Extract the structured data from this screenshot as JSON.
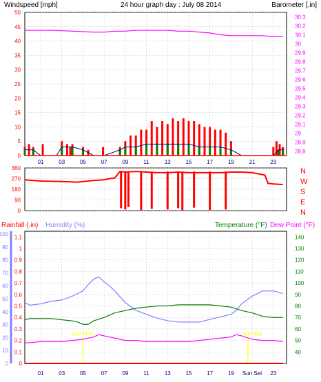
{
  "colors": {
    "wind": "#ff0000",
    "gust_green": "#008000",
    "avg_blue": "#000080",
    "baro": "#ff00ff",
    "dir": "#ff0000",
    "rain": "#ff0000",
    "humidity": "#8080ff",
    "temperature": "#008000",
    "dewpoint": "#ff00ff",
    "sun": "#ffff00",
    "tick_blue": "#000080",
    "grid": "#c0c0c0"
  },
  "chart_data": [
    {
      "type": "line",
      "title": "24 hour graph day : July 08 2014",
      "ylabel_left": "Windspeed [mph]",
      "ylabel_right": "Barometer [.in]",
      "x_range_hours": [
        23.5,
        24.25
      ],
      "x_tick_labels": [
        "01",
        "03",
        "05",
        "07",
        "09",
        "11",
        "13",
        "15",
        "17",
        "19",
        "21",
        "23"
      ],
      "y_left_ticks": [
        "0",
        "5",
        "10",
        "15",
        "20",
        "25",
        "30",
        "35",
        "40",
        "45",
        "50"
      ],
      "y_left_range": [
        0,
        50
      ],
      "y_right_ticks": [
        "28.8",
        "28.9",
        "29",
        "29.1",
        "29.2",
        "29.3",
        "29.4",
        "29.5",
        "29.6",
        "29.7",
        "29.8",
        "29.9",
        "30",
        "30.1",
        "30.2",
        "30.3"
      ],
      "y_right_range": [
        28.75,
        30.35
      ],
      "windspeed_gust": {
        "x": [
          23.5,
          23.9,
          24.3,
          24.8,
          25.2,
          26,
          26.5,
          27,
          27.5,
          27.8,
          28,
          29,
          29.5,
          30,
          30.5,
          30.9,
          31.5,
          32.5,
          33,
          33.5,
          34,
          34.5,
          35,
          35.5,
          36,
          36.5,
          37,
          37.5,
          38,
          38.5,
          39,
          39.5,
          40,
          40.5,
          41,
          41.5,
          42,
          42.5,
          43,
          43.5,
          44,
          44.3,
          45,
          46,
          46.5,
          47,
          47.3,
          47.6,
          47.9
        ],
        "y": [
          3,
          4,
          3,
          0,
          4,
          0,
          0,
          5,
          4,
          3,
          4,
          3,
          2,
          0,
          0,
          3,
          0,
          3,
          5,
          7,
          7,
          9,
          9,
          12,
          10,
          12,
          11,
          13,
          12,
          13,
          12,
          12,
          11,
          10,
          10,
          9,
          9,
          8,
          5,
          0,
          0,
          0,
          0,
          0,
          0,
          3,
          5,
          4,
          3
        ]
      },
      "windspeed_avg": {
        "x": [
          23.5,
          24.3,
          25,
          26.5,
          27,
          28,
          29,
          30,
          31,
          32.5,
          33,
          34,
          35,
          36,
          37,
          38,
          39,
          40,
          41,
          42,
          43,
          44,
          47,
          47.5,
          47.9
        ],
        "y": [
          2,
          2,
          0,
          0,
          3,
          3,
          2,
          0,
          0,
          2,
          3,
          3,
          4,
          4,
          4,
          4,
          4,
          3,
          3,
          3,
          2,
          0,
          0,
          2,
          2
        ]
      },
      "barometer": {
        "x": [
          23.5,
          26,
          28,
          30,
          31,
          32,
          33,
          34,
          35,
          36,
          37,
          38,
          39,
          40,
          41,
          42,
          43,
          44,
          45,
          46,
          47,
          47.9
        ],
        "y": [
          30.15,
          30.15,
          30.14,
          30.13,
          30.13,
          30.14,
          30.14,
          30.15,
          30.15,
          30.15,
          30.15,
          30.14,
          30.14,
          30.13,
          30.12,
          30.1,
          30.09,
          30.09,
          30.09,
          30.09,
          30.08,
          30.08
        ]
      }
    },
    {
      "type": "scatter",
      "ylabel_right": [
        "N",
        "W",
        "S",
        "E",
        "N"
      ],
      "y_left_ticks": [
        "0",
        "90",
        "180",
        "270",
        "360"
      ],
      "y_range": [
        0,
        360
      ],
      "wind_direction": {
        "x": [
          23.5,
          25,
          27,
          28.5,
          30,
          31,
          31.5,
          32,
          32.5,
          33,
          34,
          35,
          36,
          37,
          38,
          39,
          40,
          41,
          42,
          43,
          44,
          45,
          46.2,
          46.5,
          47,
          47.9
        ],
        "y": [
          260,
          250,
          245,
          240,
          255,
          260,
          270,
          275,
          330,
          325,
          330,
          325,
          320,
          320,
          325,
          320,
          320,
          320,
          320,
          325,
          325,
          320,
          300,
          230,
          225,
          220
        ]
      },
      "wind_direction_swings": {
        "x": [
          32.6,
          33,
          33.3,
          34.5,
          35.5,
          37,
          38,
          38.4,
          39.5,
          41,
          42.5
        ],
        "y": [
          20,
          10,
          30,
          5,
          15,
          10,
          20,
          5,
          25,
          5,
          10
        ]
      }
    },
    {
      "type": "line",
      "ylabel_left_1": "Rainfall (.in)",
      "ylabel_left_2": "Humidity (%)",
      "ylabel_right_1": "Temperature (°F)",
      "ylabel_right_2": "Dew Point (°F)",
      "humidity_ticks": [
        "0",
        "10",
        "20",
        "30",
        "40",
        "50",
        "60",
        "70",
        "80",
        "90",
        "100"
      ],
      "rain_ticks": [
        "0",
        "0.1",
        "0.2",
        "0.3",
        "0.4",
        "0.5",
        "0.6",
        "0.7",
        "0.8",
        "0.9",
        "1",
        "1.1"
      ],
      "temp_ticks": [
        "40",
        "50",
        "60",
        "70",
        "80",
        "90",
        "100",
        "110",
        "120",
        "130",
        "140"
      ],
      "x_tick_labels": [
        "01",
        "03",
        "05",
        "07",
        "09",
        "11",
        "13",
        "15",
        "17",
        "19",
        "Sun Set",
        "23"
      ],
      "sunrise_label": "Sun Rise",
      "sunset_label": "Sun Set",
      "rainfall": {
        "x": [
          23.5,
          47.9
        ],
        "y": [
          0,
          0
        ]
      },
      "humidity": {
        "x": [
          23.5,
          24,
          25,
          26,
          27,
          28,
          29,
          29.5,
          30,
          30.5,
          31,
          31.5,
          32,
          33,
          34,
          35,
          36,
          37,
          38,
          39,
          40,
          41,
          42,
          43,
          43.5,
          44,
          45,
          46,
          47,
          47.9
        ],
        "y": [
          47,
          45,
          46,
          48,
          49,
          52,
          56,
          61,
          65,
          67,
          63,
          60,
          56,
          47,
          41,
          38,
          35,
          33,
          32,
          32,
          32,
          34,
          36,
          38,
          41,
          46,
          52,
          56,
          56,
          54
        ]
      },
      "temperature": {
        "x": [
          23.5,
          24,
          25,
          26,
          27,
          28,
          28.5,
          29,
          29.5,
          30,
          31,
          32,
          33,
          34,
          35,
          36,
          37,
          38,
          39,
          40,
          41,
          42,
          43,
          44,
          45,
          46,
          47,
          47.9
        ],
        "y": [
          68,
          69,
          69,
          69,
          68,
          67,
          66,
          64,
          64,
          67,
          70,
          74,
          76,
          78,
          79,
          80,
          80,
          81,
          81,
          81,
          81,
          80,
          79,
          76,
          74,
          71,
          70,
          70
        ]
      },
      "dewpoint": {
        "x": [
          23.5,
          24,
          25,
          26,
          27,
          28,
          29,
          30,
          30.5,
          31,
          32,
          33,
          34,
          35,
          36,
          37,
          38,
          39,
          40,
          41,
          42,
          43,
          43.5,
          44,
          45,
          46,
          47,
          47.9
        ],
        "y": [
          48,
          48,
          49,
          49,
          49,
          50,
          51,
          53,
          55,
          54,
          52,
          50,
          50,
          49,
          49,
          49,
          49,
          49,
          50,
          51,
          52,
          53,
          55,
          54,
          51,
          50,
          50,
          49
        ]
      }
    }
  ]
}
